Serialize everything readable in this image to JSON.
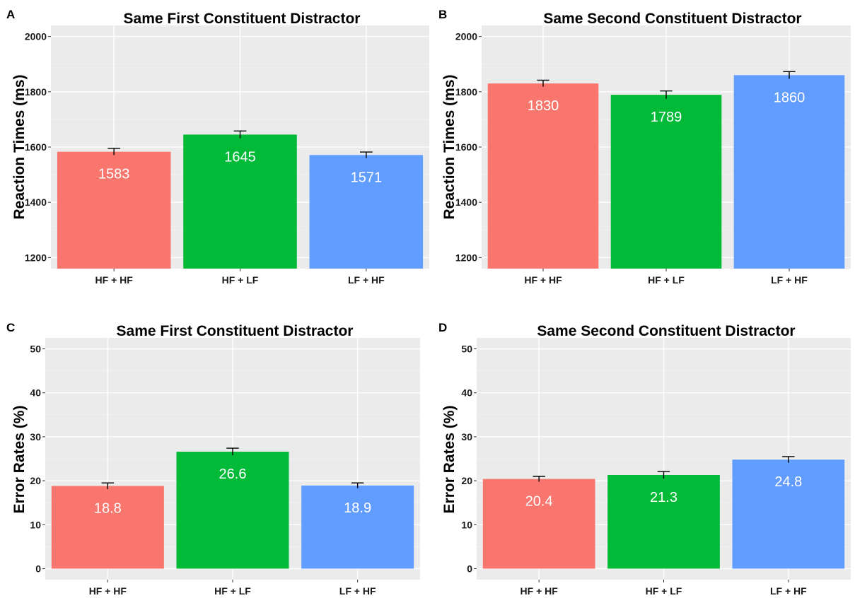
{
  "chart_data": [
    {
      "panel": "A",
      "type": "bar",
      "title": "Same First Constituent Distractor",
      "ylabel": "Reaction Times (ms)",
      "categories": [
        "HF + HF",
        "HF + LF",
        "LF + HF"
      ],
      "values": [
        1583,
        1645,
        1571
      ],
      "value_labels": [
        "1583",
        "1645",
        "1571"
      ],
      "error_upper": [
        1595,
        1658,
        1582
      ],
      "colors": [
        "#f8766d",
        "#00ba38",
        "#619cff"
      ],
      "ylim": [
        1160,
        2040
      ],
      "yticks": [
        1200,
        1400,
        1600,
        1800,
        2000
      ],
      "ytick_labels": [
        "1200",
        "1400",
        "1600",
        "1800",
        "2000"
      ]
    },
    {
      "panel": "B",
      "type": "bar",
      "title": "Same Second Constituent Distractor",
      "ylabel": "Reaction Times (ms)",
      "categories": [
        "HF + HF",
        "HF + LF",
        "LF + HF"
      ],
      "values": [
        1830,
        1789,
        1860
      ],
      "value_labels": [
        "1830",
        "1789",
        "1860"
      ],
      "error_upper": [
        1842,
        1803,
        1873
      ],
      "colors": [
        "#f8766d",
        "#00ba38",
        "#619cff"
      ],
      "ylim": [
        1160,
        2040
      ],
      "yticks": [
        1200,
        1400,
        1600,
        1800,
        2000
      ],
      "ytick_labels": [
        "1200",
        "1400",
        "1600",
        "1800",
        "2000"
      ]
    },
    {
      "panel": "C",
      "type": "bar",
      "title": "Same First Constituent Distractor",
      "ylabel": "Error Rates (%)",
      "categories": [
        "HF + HF",
        "HF + LF",
        "LF + HF"
      ],
      "values": [
        18.8,
        26.6,
        18.9
      ],
      "value_labels": [
        "18.8",
        "26.6",
        "18.9"
      ],
      "error_upper": [
        19.5,
        27.4,
        19.5
      ],
      "colors": [
        "#f8766d",
        "#00ba38",
        "#619cff"
      ],
      "ylim": [
        -2.5,
        52.5
      ],
      "yticks": [
        0,
        10,
        20,
        30,
        40,
        50
      ],
      "ytick_labels": [
        "0",
        "10",
        "20",
        "30",
        "40",
        "50"
      ]
    },
    {
      "panel": "D",
      "type": "bar",
      "title": "Same Second Constituent Distractor",
      "ylabel": "Error Rates (%)",
      "categories": [
        "HF + HF",
        "HF + LF",
        "LF + HF"
      ],
      "values": [
        20.4,
        21.3,
        24.8
      ],
      "value_labels": [
        "20.4",
        "21.3",
        "24.8"
      ],
      "error_upper": [
        21.0,
        22.1,
        25.5
      ],
      "colors": [
        "#f8766d",
        "#00ba38",
        "#619cff"
      ],
      "ylim": [
        -2.5,
        52.5
      ],
      "yticks": [
        0,
        10,
        20,
        30,
        40,
        50
      ],
      "ytick_labels": [
        "0",
        "10",
        "20",
        "30",
        "40",
        "50"
      ]
    }
  ]
}
